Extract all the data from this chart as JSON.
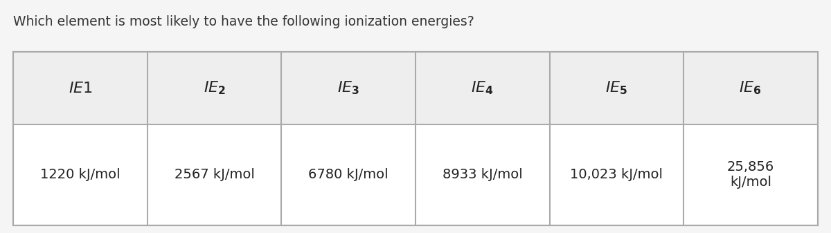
{
  "title": "Which element is most likely to have the following ionization energies?",
  "title_fontsize": 13.5,
  "title_color": "#333333",
  "headers": [
    "IE1",
    "IE2",
    "IE3",
    "IE4",
    "IE5",
    "IE6"
  ],
  "values": [
    "1220 kJ/mol",
    "2567 kJ/mol",
    "6780 kJ/mol",
    "8933 kJ/mol",
    "10,023 kJ/mol",
    "25,856\nkJ/mol"
  ],
  "header_fontsize": 16,
  "value_fontsize": 14,
  "table_border_color": "#aaaaaa",
  "table_bg_color": "#ffffff",
  "header_bg_color": "#eeeeee",
  "fig_bg_color": "#f5f5f5"
}
